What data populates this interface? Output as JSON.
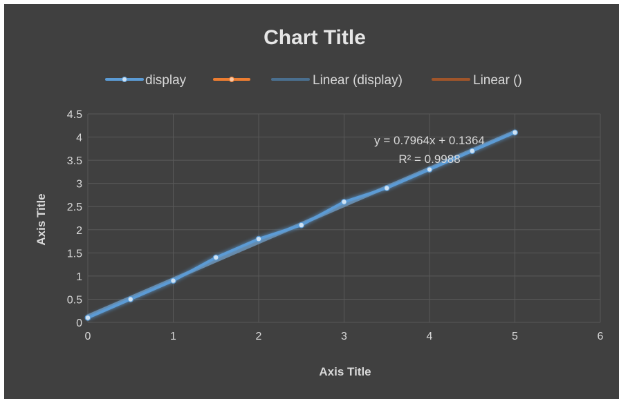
{
  "chart_data": {
    "type": "scatter",
    "title": "Chart Title",
    "xlabel": "Axis Title",
    "ylabel": "Axis Title",
    "xlim": [
      0,
      6
    ],
    "ylim": [
      0,
      4.5
    ],
    "x_ticks": [
      "0",
      "1",
      "2",
      "3",
      "4",
      "5",
      "6"
    ],
    "y_ticks": [
      "0",
      "0.5",
      "1",
      "1.5",
      "2",
      "2.5",
      "3",
      "3.5",
      "4",
      "4.5"
    ],
    "grid": true,
    "legend_position": "top",
    "series": [
      {
        "name": "display",
        "color": "#5b9bd5",
        "x": [
          0,
          0.5,
          1,
          1.5,
          2,
          2.5,
          3,
          3.5,
          4,
          4.5,
          5
        ],
        "y": [
          0.1,
          0.5,
          0.9,
          1.4,
          1.8,
          2.1,
          2.6,
          2.9,
          3.3,
          3.7,
          4.1
        ]
      },
      {
        "name": "",
        "color": "#ed7d31",
        "x": [],
        "y": []
      }
    ],
    "trendlines": [
      {
        "name": "Linear (display)",
        "color": "#4a6f8f",
        "slope": 0.7964,
        "intercept": 0.1364
      },
      {
        "name": "Linear ()",
        "color": "#a0552a"
      }
    ],
    "equation": "y = 0.7964x + 0.1364",
    "r_squared": "R² = 0.9988",
    "colors": {
      "background": "#404040",
      "grid": "#595959",
      "text": "#d9d9d9"
    }
  }
}
